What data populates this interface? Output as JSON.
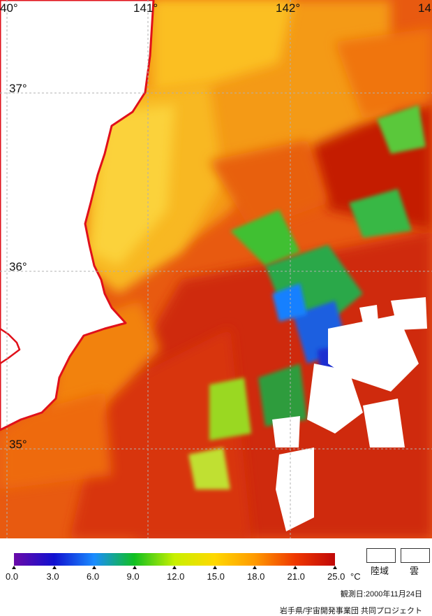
{
  "map": {
    "lon_labels": [
      "40°",
      "141°",
      "142°",
      "14"
    ],
    "lat_labels": [
      "37°",
      "36°",
      "35°"
    ]
  },
  "legend": {
    "ticks": [
      "0.0",
      "3.0",
      "6.0",
      "9.0",
      "12.0",
      "15.0",
      "18.0",
      "21.0",
      "25.0"
    ],
    "unit": "°C",
    "colors": [
      "#6a0aa8",
      "#1010d0",
      "#1a8cff",
      "#10c020",
      "#c8f000",
      "#ffd800",
      "#ff9a00",
      "#ef3800",
      "#c00808"
    ],
    "land_label": "陸域",
    "cloud_label": "雲"
  },
  "footer": {
    "date": "観測日:2000年11月24日",
    "credit": "岩手県/宇宙開発事業団 共同プロジェクト"
  },
  "colors": {
    "coast": "#e0101a",
    "land": "#ffffff",
    "grid": "#b0b0b0"
  }
}
